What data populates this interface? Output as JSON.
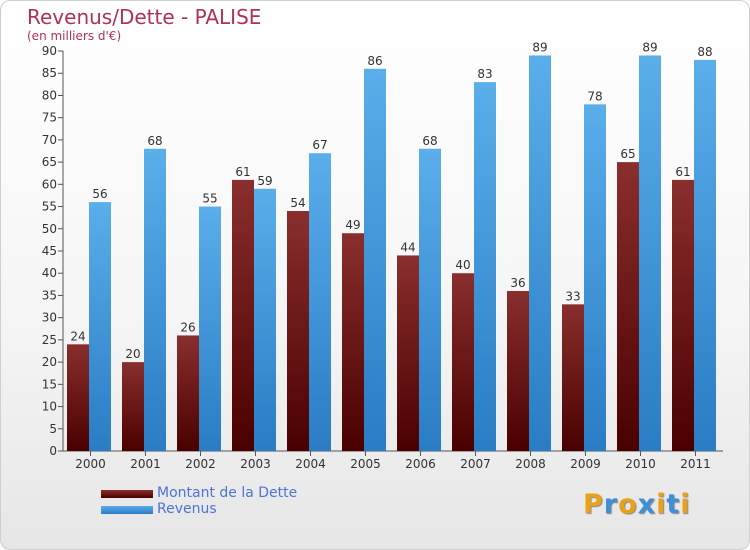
{
  "title": "Revenus/Dette - PALISE",
  "subtitle": "(en milliers d'€)",
  "logo_text": "Proxiti",
  "colors": {
    "dette": "#7a1a1a",
    "revenus": "#3f97df",
    "title": "#b0305c",
    "legend_text": "#4a74d6"
  },
  "chart_data": {
    "type": "bar",
    "categories": [
      "2000",
      "2001",
      "2002",
      "2003",
      "2004",
      "2005",
      "2006",
      "2007",
      "2008",
      "2009",
      "2010",
      "2011"
    ],
    "series": [
      {
        "name": "Montant de la Dette",
        "values": [
          24,
          20,
          26,
          61,
          54,
          49,
          44,
          40,
          36,
          33,
          65,
          61
        ]
      },
      {
        "name": "Revenus",
        "values": [
          56,
          68,
          55,
          59,
          67,
          86,
          68,
          83,
          89,
          78,
          89,
          88
        ]
      }
    ],
    "ylim": [
      0,
      90
    ],
    "yticks": [
      0,
      5,
      10,
      15,
      20,
      25,
      30,
      35,
      40,
      45,
      50,
      55,
      60,
      65,
      70,
      75,
      80,
      85,
      90
    ],
    "grid": false,
    "legend_position": "bottom-left",
    "data_labels": true
  },
  "legend": {
    "items": [
      {
        "label": "Montant de la Dette"
      },
      {
        "label": "Revenus"
      }
    ]
  }
}
